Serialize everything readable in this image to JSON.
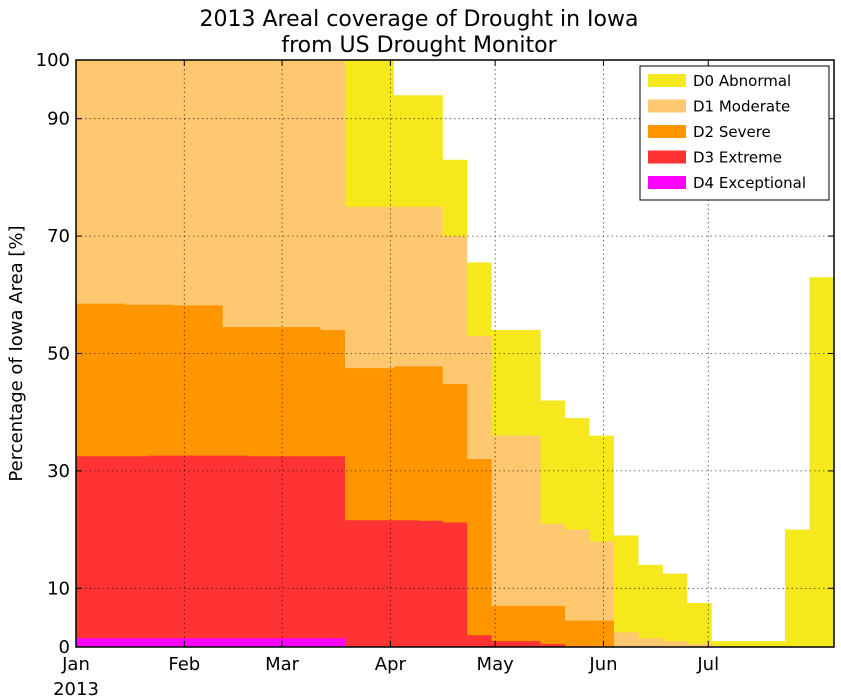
{
  "chart_data": {
    "type": "area",
    "step": "post",
    "stacked": false,
    "title": "2013 Areal coverage of Drought in Iowa",
    "subtitle": "from US Drought Monitor",
    "xlabel": "",
    "ylabel": "Percentage of Iowa Area [%]",
    "ylim": [
      0,
      100
    ],
    "xlim": [
      "2013-01-01",
      "2013-08-06"
    ],
    "yticks": [
      0,
      10,
      30,
      50,
      70,
      90,
      100
    ],
    "xticks": [
      {
        "date": "2013-01-01",
        "label": "Jan"
      },
      {
        "date": "2013-02-01",
        "label": "Feb"
      },
      {
        "date": "2013-03-01",
        "label": "Mar"
      },
      {
        "date": "2013-04-01",
        "label": "Apr"
      },
      {
        "date": "2013-05-01",
        "label": "May"
      },
      {
        "date": "2013-06-01",
        "label": "Jun"
      },
      {
        "date": "2013-07-01",
        "label": "Jul"
      }
    ],
    "xtick_sublabel": "2013",
    "grid": true,
    "legend_position": "top-right",
    "x": [
      "2013-01-01",
      "2013-01-08",
      "2013-01-15",
      "2013-01-22",
      "2013-01-29",
      "2013-02-05",
      "2013-02-12",
      "2013-02-19",
      "2013-02-26",
      "2013-03-05",
      "2013-03-12",
      "2013-03-19",
      "2013-03-26",
      "2013-04-02",
      "2013-04-09",
      "2013-04-16",
      "2013-04-23",
      "2013-04-30",
      "2013-05-07",
      "2013-05-14",
      "2013-05-21",
      "2013-05-28",
      "2013-06-04",
      "2013-06-11",
      "2013-06-18",
      "2013-06-25",
      "2013-07-02",
      "2013-07-09",
      "2013-07-16",
      "2013-07-23",
      "2013-07-30"
    ],
    "series": [
      {
        "name": "D0 Abnormal",
        "color": "#f5e81c",
        "values": [
          100,
          100,
          100,
          100,
          100,
          100,
          100,
          100,
          100,
          100,
          100,
          100,
          100,
          94,
          94,
          83,
          65.5,
          54,
          54,
          42,
          39,
          36,
          19,
          14,
          12.5,
          7.5,
          1,
          1,
          1,
          20,
          63
        ]
      },
      {
        "name": "D1 Moderate",
        "color": "#fdc86f",
        "values": [
          100,
          100,
          100,
          100,
          100,
          100,
          100,
          100,
          100,
          100,
          100,
          75,
          75,
          75,
          75,
          70,
          53,
          36,
          36,
          21,
          20,
          18,
          2.5,
          1.5,
          1,
          0.5,
          0,
          0,
          0,
          0,
          0
        ]
      },
      {
        "name": "D2 Severe",
        "color": "#ff9600",
        "values": [
          58.5,
          58.5,
          58.3,
          58.3,
          58.2,
          58.2,
          54.5,
          54.5,
          54.5,
          54.5,
          54,
          47.5,
          47.5,
          47.8,
          47.8,
          44.8,
          32,
          7,
          7,
          7,
          4.5,
          4.5,
          0,
          0,
          0,
          0,
          0,
          0,
          0,
          0,
          0
        ]
      },
      {
        "name": "D3 Extreme",
        "color": "#ff3333",
        "values": [
          32.5,
          32.5,
          32.5,
          32.6,
          32.6,
          32.6,
          32.6,
          32.5,
          32.5,
          32.5,
          32.5,
          21.6,
          21.6,
          21.6,
          21.5,
          21.2,
          2,
          1,
          1,
          0.5,
          0,
          0,
          0,
          0,
          0,
          0,
          0,
          0,
          0,
          0,
          0
        ]
      },
      {
        "name": "D4 Exceptional",
        "color": "#ff00ff",
        "values": [
          1.5,
          1.5,
          1.5,
          1.5,
          1.5,
          1.5,
          1.5,
          1.5,
          1.5,
          1.5,
          1.5,
          0,
          0,
          0,
          0,
          0,
          0,
          0,
          0,
          0,
          0,
          0,
          0,
          0,
          0,
          0,
          0,
          0,
          0,
          0,
          0
        ]
      }
    ]
  }
}
